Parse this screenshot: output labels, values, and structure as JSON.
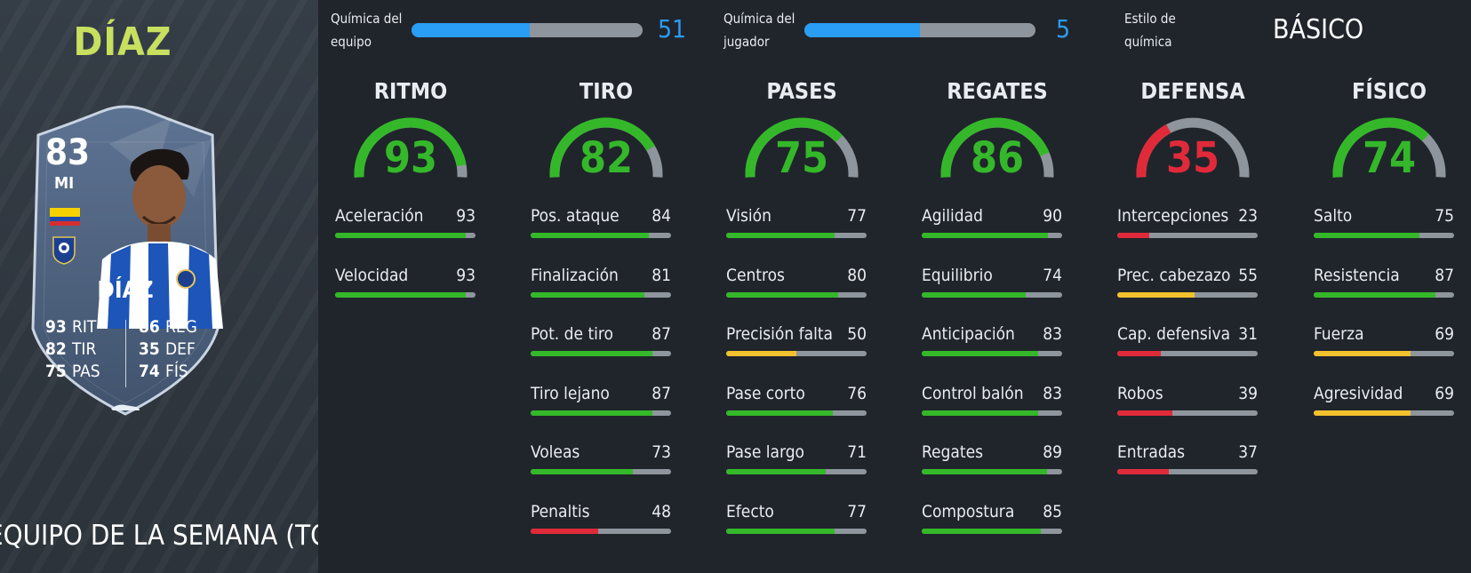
{
  "player": {
    "name": "DÍAZ",
    "team_of_week_label": "EQUIPO DE LA SEMANA (TOTW)"
  },
  "card": {
    "rating": "83",
    "position": "MI",
    "name": "DÍAZ",
    "stats": [
      {
        "value": "93",
        "label": "RIT"
      },
      {
        "value": "82",
        "label": "TIR"
      },
      {
        "value": "75",
        "label": "PAS"
      },
      {
        "value": "86",
        "label": "REG"
      },
      {
        "value": "35",
        "label": "DEF"
      },
      {
        "value": "74",
        "label": "FÍS"
      }
    ],
    "flag_colors": [
      "#f6d100",
      "#1f4aa8",
      "#d62e2e"
    ]
  },
  "chemistry": {
    "team": {
      "label_line1": "Química del",
      "label_line2": "equipo",
      "value": "51",
      "fraction": 0.51
    },
    "player": {
      "label_line1": "Química del",
      "label_line2": "jugador",
      "value": "5",
      "fraction": 0.5
    },
    "style": {
      "label_line1": "Estilo de",
      "label_line2": "química",
      "value": "BÁSICO"
    }
  },
  "colors": {
    "high": "#34b82a",
    "mid": "#f2c12e",
    "low": "#e02a3a",
    "track": "#8e959c",
    "accent_blue": "#2a9df4",
    "name_green": "#c7e05f"
  },
  "categories": [
    {
      "title": "RITMO",
      "value": "93",
      "level": 0.93,
      "stats": [
        {
          "name": "Aceleración",
          "value": "93"
        },
        {
          "name": "Velocidad",
          "value": "93"
        }
      ]
    },
    {
      "title": "TIRO",
      "value": "82",
      "level": 0.82,
      "stats": [
        {
          "name": "Pos. ataque",
          "value": "84"
        },
        {
          "name": "Finalización",
          "value": "81"
        },
        {
          "name": "Pot. de tiro",
          "value": "87"
        },
        {
          "name": "Tiro lejano",
          "value": "87"
        },
        {
          "name": "Voleas",
          "value": "73"
        },
        {
          "name": "Penaltis",
          "value": "48"
        }
      ]
    },
    {
      "title": "PASES",
      "value": "75",
      "level": 0.75,
      "stats": [
        {
          "name": "Visión",
          "value": "77"
        },
        {
          "name": "Centros",
          "value": "80"
        },
        {
          "name": "Precisión falta",
          "value": "50"
        },
        {
          "name": "Pase corto",
          "value": "76"
        },
        {
          "name": "Pase largo",
          "value": "71"
        },
        {
          "name": "Efecto",
          "value": "77"
        }
      ]
    },
    {
      "title": "REGATES",
      "value": "86",
      "level": 0.86,
      "stats": [
        {
          "name": "Agilidad",
          "value": "90"
        },
        {
          "name": "Equilibrio",
          "value": "74"
        },
        {
          "name": "Anticipación",
          "value": "83"
        },
        {
          "name": "Control balón",
          "value": "83"
        },
        {
          "name": "Regates",
          "value": "89"
        },
        {
          "name": "Compostura",
          "value": "85"
        }
      ]
    },
    {
      "title": "DEFENSA",
      "value": "35",
      "level": 0.35,
      "stats": [
        {
          "name": "Intercepciones",
          "value": "23"
        },
        {
          "name": "Prec. cabezazo",
          "value": "55"
        },
        {
          "name": "Cap. defensiva",
          "value": "31"
        },
        {
          "name": "Robos",
          "value": "39"
        },
        {
          "name": "Entradas",
          "value": "37"
        }
      ]
    },
    {
      "title": "FÍSICO",
      "value": "74",
      "level": 0.74,
      "stats": [
        {
          "name": "Salto",
          "value": "75"
        },
        {
          "name": "Resistencia",
          "value": "87"
        },
        {
          "name": "Fuerza",
          "value": "69"
        },
        {
          "name": "Agresividad",
          "value": "69"
        }
      ]
    }
  ]
}
